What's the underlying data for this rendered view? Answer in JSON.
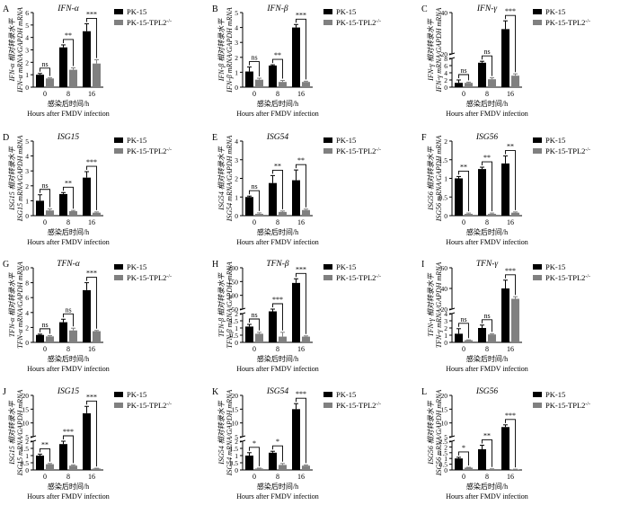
{
  "colors": {
    "pk15": "#000000",
    "tpl2": "#808080",
    "axis": "#000000"
  },
  "shared": {
    "legend_pk15": "PK-15",
    "legend_tpl2": "PK-15-TPL2",
    "legend_tpl2_sup": "-/-",
    "xlabel_cn": "感染后时间/h",
    "xlabel_en": "Hours after FMDV infection",
    "ylabel_cn_suffix": "相对转录水平",
    "ylabel_en_suffix": "mRNA/GAPDH mRNA"
  },
  "chart_data": [
    {
      "letter": "A",
      "type": "bar",
      "title": "IFN-α",
      "ylabel_gene": "IFN-α",
      "categories": [
        "0",
        "8",
        "16"
      ],
      "yticks": [
        0,
        1,
        2,
        3,
        4,
        5,
        6
      ],
      "ylim": [
        0,
        6
      ],
      "series": [
        {
          "name": "PK-15",
          "values": [
            1.0,
            3.2,
            4.5
          ],
          "errors": [
            0.1,
            0.2,
            0.6
          ]
        },
        {
          "name": "PK-15-TPL2-/-",
          "values": [
            0.7,
            1.4,
            1.9
          ],
          "errors": [
            0.05,
            0.15,
            0.3
          ]
        }
      ],
      "sig": [
        "ns",
        "**",
        "***"
      ]
    },
    {
      "letter": "B",
      "type": "bar",
      "title": "IFN-β",
      "ylabel_gene": "IFN-β",
      "categories": [
        "0",
        "8",
        "16"
      ],
      "yticks": [
        0,
        1,
        2,
        3,
        4,
        5
      ],
      "ylim": [
        0,
        5
      ],
      "series": [
        {
          "name": "PK-15",
          "values": [
            1.05,
            1.45,
            4.0
          ],
          "errors": [
            0.3,
            0.05,
            0.2
          ]
        },
        {
          "name": "PK-15-TPL2-/-",
          "values": [
            0.5,
            0.35,
            0.35
          ],
          "errors": [
            0.1,
            0.1,
            0.05
          ]
        }
      ],
      "sig": [
        "ns",
        "**",
        "***"
      ]
    },
    {
      "letter": "C",
      "type": "bar",
      "title": "IFN-γ",
      "ylabel_gene": "IFN-γ",
      "categories": [
        "0",
        "8",
        "16"
      ],
      "yticks_low": [
        0,
        2,
        4,
        6,
        8
      ],
      "yticks_high": [
        20,
        40
      ],
      "break": [
        8,
        20
      ],
      "ylim": [
        0,
        40
      ],
      "series": [
        {
          "name": "PK-15",
          "values": [
            1.2,
            6.8,
            32
          ],
          "errors": [
            0.8,
            0.4,
            4
          ]
        },
        {
          "name": "PK-15-TPL2-/-",
          "values": [
            1.2,
            2.2,
            3.2
          ],
          "errors": [
            0.2,
            0.4,
            0.5
          ]
        }
      ],
      "sig": [
        "ns",
        "ns",
        "***"
      ]
    },
    {
      "letter": "D",
      "type": "bar",
      "title": "ISG15",
      "ylabel_gene": "ISG15",
      "categories": [
        "0",
        "8",
        "16"
      ],
      "yticks": [
        0,
        1,
        2,
        3,
        4,
        5
      ],
      "ylim": [
        0,
        5
      ],
      "series": [
        {
          "name": "PK-15",
          "values": [
            1.0,
            1.45,
            2.55
          ],
          "errors": [
            0.4,
            0.1,
            0.4
          ]
        },
        {
          "name": "PK-15-TPL2-/-",
          "values": [
            0.35,
            0.3,
            0.2
          ],
          "errors": [
            0.1,
            0.05,
            0.05
          ]
        }
      ],
      "sig": [
        "ns",
        "**",
        "***"
      ]
    },
    {
      "letter": "E",
      "type": "bar",
      "title": "ISG54",
      "ylabel_gene": "ISG54",
      "categories": [
        "0",
        "8",
        "16"
      ],
      "yticks": [
        0,
        1,
        2,
        3,
        4
      ],
      "ylim": [
        0,
        4
      ],
      "series": [
        {
          "name": "PK-15",
          "values": [
            1.0,
            1.75,
            1.9
          ],
          "errors": [
            0.05,
            0.4,
            0.55
          ]
        },
        {
          "name": "PK-15-TPL2-/-",
          "values": [
            0.1,
            0.2,
            0.3
          ],
          "errors": [
            0.05,
            0.05,
            0.05
          ]
        }
      ],
      "sig": [
        "ns",
        "**",
        "**"
      ]
    },
    {
      "letter": "F",
      "type": "bar",
      "title": "ISG56",
      "ylabel_gene": "ISG56",
      "categories": [
        "0",
        "8",
        "16"
      ],
      "yticks": [
        0,
        0.5,
        1,
        1.5,
        2
      ],
      "ylim": [
        0,
        2
      ],
      "series": [
        {
          "name": "PK-15",
          "values": [
            1.0,
            1.25,
            1.4
          ],
          "errors": [
            0.05,
            0.05,
            0.2
          ]
        },
        {
          "name": "PK-15-TPL2-/-",
          "values": [
            0.05,
            0.05,
            0.08
          ],
          "errors": [
            0.02,
            0.02,
            0.02
          ]
        }
      ],
      "sig": [
        "**",
        "**",
        "**"
      ]
    },
    {
      "letter": "G",
      "type": "bar",
      "title": "TFN-α",
      "ylabel_gene": "TFN-α",
      "categories": [
        "0",
        "8",
        "16"
      ],
      "yticks": [
        0,
        2,
        4,
        6,
        8,
        10
      ],
      "ylim": [
        0,
        10
      ],
      "series": [
        {
          "name": "PK-15",
          "values": [
            1.0,
            2.7,
            7.0
          ],
          "errors": [
            0.1,
            0.4,
            1.0
          ]
        },
        {
          "name": "PK-15-TPL2-/-",
          "values": [
            0.8,
            1.6,
            1.5
          ],
          "errors": [
            0.1,
            0.3,
            0.1
          ]
        }
      ],
      "sig": [
        "ns",
        "ns",
        "***"
      ]
    },
    {
      "letter": "H",
      "type": "bar",
      "title": "TFN-β",
      "ylabel_gene": "TFN-β",
      "categories": [
        "0",
        "8",
        "16"
      ],
      "yticks_low": [
        0,
        0.5,
        1,
        1.5,
        2
      ],
      "yticks_high": [
        50,
        100,
        150,
        200
      ],
      "break": [
        2,
        50
      ],
      "ylim": [
        0,
        200
      ],
      "series": [
        {
          "name": "PK-15",
          "values": [
            1.1,
            35,
            145
          ],
          "errors": [
            0.15,
            15,
            15
          ]
        },
        {
          "name": "PK-15-TPL2-/-",
          "values": [
            0.6,
            0.4,
            0.4
          ],
          "errors": [
            0.1,
            0.3,
            0.05
          ]
        }
      ],
      "sig": [
        "ns",
        "***",
        "***"
      ]
    },
    {
      "letter": "I",
      "type": "bar",
      "title": "TFN-γ",
      "ylabel_gene": "TFN-γ",
      "categories": [
        "0",
        "8",
        "16"
      ],
      "yticks_low": [
        0,
        1,
        2,
        3,
        4
      ],
      "yticks_high": [
        20,
        40,
        60
      ],
      "break": [
        4,
        20
      ],
      "ylim": [
        0,
        60
      ],
      "series": [
        {
          "name": "PK-15",
          "values": [
            1.2,
            2.0,
            40
          ],
          "errors": [
            0.7,
            0.4,
            8
          ]
        },
        {
          "name": "PK-15-TPL2-/-",
          "values": [
            0.3,
            1.1,
            30
          ],
          "errors": [
            0.05,
            0.1,
            2
          ]
        }
      ],
      "sig": [
        "ns",
        "ns",
        "***"
      ]
    },
    {
      "letter": "J",
      "type": "bar",
      "title": "ISG15",
      "ylabel_gene": "ISG15",
      "categories": [
        "0",
        "8",
        "16"
      ],
      "yticks_low": [
        0,
        0.5,
        1,
        1.5,
        2
      ],
      "yticks_high": [
        5,
        10,
        15,
        20
      ],
      "break": [
        2,
        5
      ],
      "ylim": [
        0,
        20
      ],
      "series": [
        {
          "name": "PK-15",
          "values": [
            1.0,
            1.8,
            13.5
          ],
          "errors": [
            0.1,
            0.2,
            2.5
          ]
        },
        {
          "name": "PK-15-TPL2-/-",
          "values": [
            0.4,
            0.3,
            0.1
          ],
          "errors": [
            0.05,
            0.05,
            0.02
          ]
        }
      ],
      "sig": [
        "**",
        "***",
        "***"
      ]
    },
    {
      "letter": "K",
      "type": "bar",
      "title": "ISG54",
      "ylabel_gene": "ISG54",
      "categories": [
        "0",
        "8",
        "16"
      ],
      "yticks_low": [
        0,
        0.5,
        1,
        1.5,
        2
      ],
      "yticks_high": [
        5,
        10,
        15,
        20
      ],
      "break": [
        2,
        5
      ],
      "ylim": [
        0,
        20
      ],
      "series": [
        {
          "name": "PK-15",
          "values": [
            1.0,
            1.2,
            15.0
          ],
          "errors": [
            0.2,
            0.1,
            2
          ]
        },
        {
          "name": "PK-15-TPL2-/-",
          "values": [
            0.1,
            0.35,
            0.3
          ],
          "errors": [
            0.03,
            0.1,
            0.05
          ]
        }
      ],
      "sig": [
        "*",
        "*",
        "***"
      ]
    },
    {
      "letter": "L",
      "type": "bar",
      "title": "ISG56",
      "ylabel_gene": "ISG56",
      "categories": [
        "0",
        "8",
        "16"
      ],
      "yticks_low": [
        0,
        0.5,
        1,
        1.5,
        2,
        2.5
      ],
      "yticks_high": [
        5,
        10,
        15,
        20
      ],
      "break": [
        2.5,
        5
      ],
      "ylim": [
        0,
        20
      ],
      "series": [
        {
          "name": "PK-15",
          "values": [
            1.0,
            1.8,
            8.5
          ],
          "errors": [
            0.1,
            0.35,
            0.8
          ]
        },
        {
          "name": "PK-15-TPL2-/-",
          "values": [
            0.2,
            0.08,
            0.05
          ],
          "errors": [
            0.03,
            0.02,
            0.02
          ]
        }
      ],
      "sig": [
        "*",
        "**",
        "***"
      ]
    }
  ]
}
